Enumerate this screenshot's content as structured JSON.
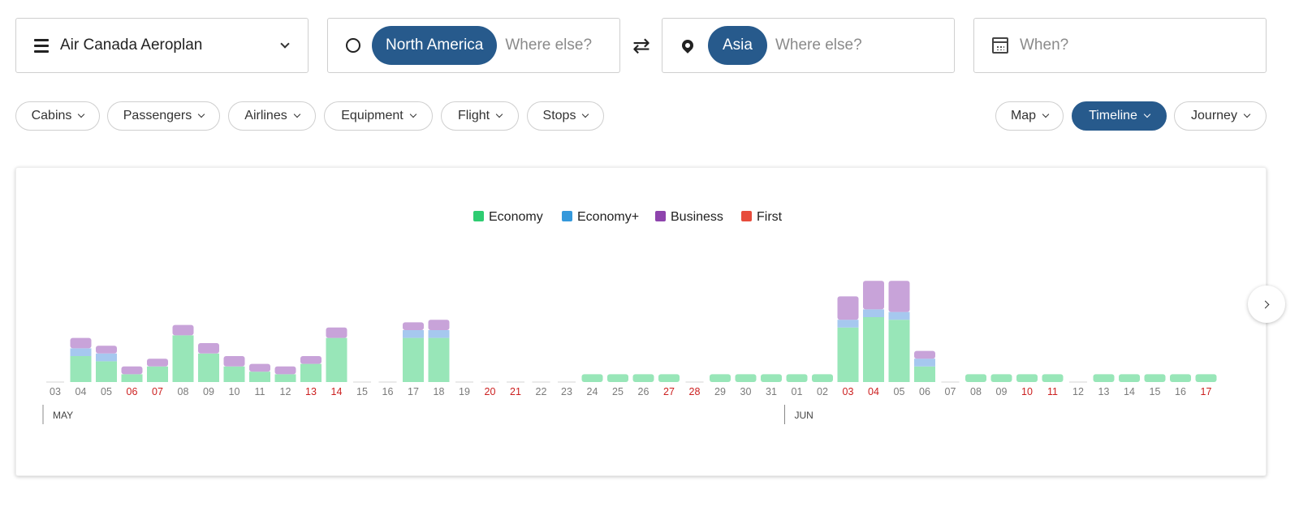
{
  "search": {
    "program": "Air Canada Aeroplan",
    "origin_chip": "North America",
    "origin_placeholder": "Where else?",
    "dest_chip": "Asia",
    "dest_placeholder": "Where else?",
    "date_placeholder": "When?"
  },
  "filters": [
    "Cabins",
    "Passengers",
    "Airlines",
    "Equipment",
    "Flight",
    "Stops"
  ],
  "views": {
    "items": [
      "Map",
      "Timeline",
      "Journey"
    ],
    "active": "Timeline"
  },
  "colors": {
    "accent": "#275a8c",
    "economy_fill": "#98e6b8",
    "economy_plus_fill": "#a6c8ef",
    "business_fill": "#c8a3d9",
    "weekend_label": "#cc1f1f"
  },
  "icons": {
    "program": "menu-icon",
    "origin": "circle-icon",
    "swap": "swap-arrows-icon",
    "dest": "map-pin-icon",
    "date": "calendar-icon",
    "clear": "close-icon",
    "next": "chevron-right-icon"
  },
  "chart_data": {
    "type": "bar",
    "stacked": true,
    "legend": [
      {
        "name": "Economy",
        "color": "#2ecc71"
      },
      {
        "name": "Economy+",
        "color": "#3498db"
      },
      {
        "name": "Business",
        "color": "#8e44ad"
      },
      {
        "name": "First",
        "color": "#e74c3c"
      }
    ],
    "legend_position": "top-center",
    "months": [
      {
        "label": "MAY",
        "start_index": 0
      },
      {
        "label": "JUN",
        "start_index": 29
      }
    ],
    "categories": [
      "03",
      "04",
      "05",
      "06",
      "07",
      "08",
      "09",
      "10",
      "11",
      "12",
      "13",
      "14",
      "15",
      "16",
      "17",
      "18",
      "19",
      "20",
      "21",
      "22",
      "23",
      "24",
      "25",
      "26",
      "27",
      "28",
      "29",
      "30",
      "31",
      "01",
      "02",
      "03",
      "04",
      "05",
      "06",
      "07",
      "08",
      "09",
      "10",
      "11",
      "12",
      "13",
      "14",
      "15",
      "16",
      "17"
    ],
    "weekend": [
      false,
      false,
      false,
      true,
      true,
      false,
      false,
      false,
      false,
      false,
      true,
      true,
      false,
      false,
      false,
      false,
      false,
      true,
      true,
      false,
      false,
      false,
      false,
      false,
      true,
      true,
      false,
      false,
      false,
      false,
      false,
      true,
      true,
      false,
      false,
      false,
      false,
      false,
      true,
      true,
      false,
      false,
      false,
      false,
      false,
      true
    ],
    "series": [
      {
        "name": "Economy",
        "values": [
          0,
          10,
          8,
          3,
          6,
          18,
          11,
          6,
          4,
          3,
          7,
          17,
          0,
          0,
          17,
          17,
          0,
          0,
          0,
          0,
          0,
          3,
          3,
          3,
          3,
          0,
          3,
          3,
          3,
          3,
          3,
          21,
          25,
          24,
          6,
          0,
          3,
          3,
          3,
          3,
          0,
          3,
          3,
          3,
          3,
          3
        ]
      },
      {
        "name": "Economy+",
        "values": [
          0,
          3,
          3,
          0,
          0,
          0,
          0,
          0,
          0,
          0,
          0,
          0,
          0,
          0,
          3,
          3,
          0,
          0,
          0,
          0,
          0,
          0,
          0,
          0,
          0,
          0,
          0,
          0,
          0,
          0,
          0,
          3,
          3,
          3,
          3,
          0,
          0,
          0,
          0,
          0,
          0,
          0,
          0,
          0,
          0,
          0
        ]
      },
      {
        "name": "Business",
        "values": [
          0,
          4,
          3,
          3,
          3,
          4,
          4,
          4,
          3,
          3,
          3,
          4,
          0,
          0,
          3,
          4,
          0,
          0,
          0,
          0,
          0,
          0,
          0,
          0,
          0,
          0,
          0,
          0,
          0,
          0,
          0,
          9,
          11,
          12,
          3,
          0,
          0,
          0,
          0,
          0,
          0,
          0,
          0,
          0,
          0,
          0
        ]
      },
      {
        "name": "First",
        "values": [
          0,
          0,
          0,
          0,
          0,
          0,
          0,
          0,
          0,
          0,
          0,
          0,
          0,
          0,
          0,
          0,
          0,
          0,
          0,
          0,
          0,
          0,
          0,
          0,
          0,
          0,
          0,
          0,
          0,
          0,
          0,
          0,
          0,
          0,
          0,
          0,
          0,
          0,
          0,
          0,
          0,
          0,
          0,
          0,
          0,
          0
        ]
      }
    ]
  }
}
